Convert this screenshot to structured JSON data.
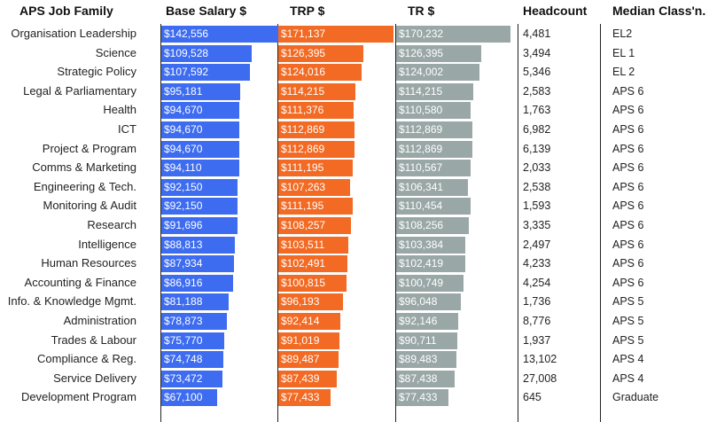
{
  "chart_data": {
    "type": "table",
    "columns": [
      "APS Job Family",
      "Base Salary $",
      "TRP $",
      "TR $",
      "Headcount",
      "Median Class'n."
    ],
    "colors": {
      "base_salary": "#3d6cf0",
      "trp": "#f26a23",
      "tr": "#9aa7a7"
    },
    "rows": [
      {
        "family": "Organisation Leadership",
        "base": 142556,
        "base_label": "$142,556",
        "trp": 171137,
        "trp_label": "$171,137",
        "tr": 170232,
        "tr_label": "$170,232",
        "headcount": "4,481",
        "median": "EL2"
      },
      {
        "family": "Science",
        "base": 109528,
        "base_label": "$109,528",
        "trp": 126395,
        "trp_label": "$126,395",
        "tr": 126395,
        "tr_label": "$126,395",
        "headcount": "3,494",
        "median": "EL 1"
      },
      {
        "family": "Strategic Policy",
        "base": 107592,
        "base_label": "$107,592",
        "trp": 124016,
        "trp_label": "$124,016",
        "tr": 124002,
        "tr_label": "$124,002",
        "headcount": "5,346",
        "median": "EL 2"
      },
      {
        "family": "Legal & Parliamentary",
        "base": 95181,
        "base_label": "$95,181",
        "trp": 114215,
        "trp_label": "$114,215",
        "tr": 114215,
        "tr_label": "$114,215",
        "headcount": "2,583",
        "median": "APS 6"
      },
      {
        "family": "Health",
        "base": 94670,
        "base_label": "$94,670",
        "trp": 111376,
        "trp_label": "$111,376",
        "tr": 110580,
        "tr_label": "$110,580",
        "headcount": "1,763",
        "median": "APS 6"
      },
      {
        "family": "ICT",
        "base": 94670,
        "base_label": "$94,670",
        "trp": 112869,
        "trp_label": "$112,869",
        "tr": 112869,
        "tr_label": "$112,869",
        "headcount": "6,982",
        "median": "APS 6"
      },
      {
        "family": "Project & Program",
        "base": 94670,
        "base_label": "$94,670",
        "trp": 112869,
        "trp_label": "$112,869",
        "tr": 112869,
        "tr_label": "$112,869",
        "headcount": "6,139",
        "median": "APS 6"
      },
      {
        "family": "Comms & Marketing",
        "base": 94110,
        "base_label": "$94,110",
        "trp": 111195,
        "trp_label": "$111,195",
        "tr": 110567,
        "tr_label": "$110,567",
        "headcount": "2,033",
        "median": "APS 6"
      },
      {
        "family": "Engineering & Tech.",
        "base": 92150,
        "base_label": "$92,150",
        "trp": 107263,
        "trp_label": "$107,263",
        "tr": 106341,
        "tr_label": "$106,341",
        "headcount": "2,538",
        "median": "APS 6"
      },
      {
        "family": "Monitoring & Audit",
        "base": 92150,
        "base_label": "$92,150",
        "trp": 111195,
        "trp_label": "$111,195",
        "tr": 110454,
        "tr_label": "$110,454",
        "headcount": "1,593",
        "median": "APS 6"
      },
      {
        "family": "Research",
        "base": 91696,
        "base_label": "$91,696",
        "trp": 108257,
        "trp_label": "$108,257",
        "tr": 108256,
        "tr_label": "$108,256",
        "headcount": "3,335",
        "median": "APS 6"
      },
      {
        "family": "Intelligence",
        "base": 88813,
        "base_label": "$88,813",
        "trp": 103511,
        "trp_label": "$103,511",
        "tr": 103384,
        "tr_label": "$103,384",
        "headcount": "2,497",
        "median": "APS 6"
      },
      {
        "family": "Human Resources",
        "base": 87934,
        "base_label": "$87,934",
        "trp": 102491,
        "trp_label": "$102,491",
        "tr": 102419,
        "tr_label": "$102,419",
        "headcount": "4,233",
        "median": "APS 6"
      },
      {
        "family": "Accounting & Finance",
        "base": 86916,
        "base_label": "$86,916",
        "trp": 100815,
        "trp_label": "$100,815",
        "tr": 100749,
        "tr_label": "$100,749",
        "headcount": "4,254",
        "median": "APS 6"
      },
      {
        "family": "Info. & Knowledge Mgmt.",
        "base": 81188,
        "base_label": "$81,188",
        "trp": 96193,
        "trp_label": "$96,193",
        "tr": 96048,
        "tr_label": "$96,048",
        "headcount": "1,736",
        "median": "APS 5"
      },
      {
        "family": "Administration",
        "base": 78873,
        "base_label": "$78,873",
        "trp": 92414,
        "trp_label": "$92,414",
        "tr": 92146,
        "tr_label": "$92,146",
        "headcount": "8,776",
        "median": "APS 5"
      },
      {
        "family": "Trades & Labour",
        "base": 75770,
        "base_label": "$75,770",
        "trp": 91019,
        "trp_label": "$91,019",
        "tr": 90711,
        "tr_label": "$90,711",
        "headcount": "1,937",
        "median": "APS 5"
      },
      {
        "family": "Compliance & Reg.",
        "base": 74748,
        "base_label": "$74,748",
        "trp": 89487,
        "trp_label": "$89,487",
        "tr": 89483,
        "tr_label": "$89,483",
        "headcount": "13,102",
        "median": "APS 4"
      },
      {
        "family": "Service Delivery",
        "base": 73472,
        "base_label": "$73,472",
        "trp": 87439,
        "trp_label": "$87,439",
        "tr": 87438,
        "tr_label": "$87,438",
        "headcount": "27,008",
        "median": "APS 4"
      },
      {
        "family": "Development Program",
        "base": 67100,
        "base_label": "$67,100",
        "trp": 77433,
        "trp_label": "$77,433",
        "tr": 77433,
        "tr_label": "$77,433",
        "headcount": "645",
        "median": "Graduate"
      }
    ]
  }
}
